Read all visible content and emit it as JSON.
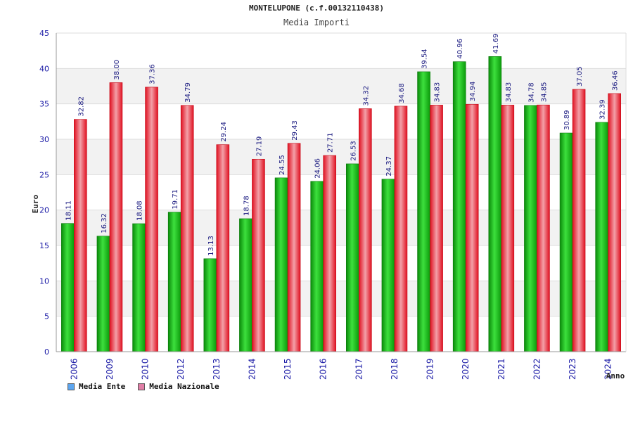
{
  "colors": {
    "ente": "#19c119",
    "nazionale": "#ee2a3a",
    "legend_ente": "#5da6f0",
    "legend_nazionale": "#e07ea6"
  },
  "chart_data": {
    "type": "bar",
    "title": "MONTELUPONE (c.f.00132110438)",
    "subtitle": "Media Importi",
    "xlabel": "Anno",
    "ylabel": "Euro",
    "ylim": [
      0,
      45
    ],
    "yticks": [
      0,
      5,
      10,
      15,
      20,
      25,
      30,
      35,
      40,
      45
    ],
    "grid": true,
    "legend_position": "bottom-left",
    "categories": [
      "2006",
      "2009",
      "2010",
      "2012",
      "2013",
      "2014",
      "2015",
      "2016",
      "2017",
      "2018",
      "2019",
      "2020",
      "2021",
      "2022",
      "2023",
      "2024"
    ],
    "series": [
      {
        "name": "Media Ente",
        "values": [
          18.11,
          16.32,
          18.08,
          19.71,
          13.13,
          18.78,
          24.55,
          24.06,
          26.53,
          24.37,
          39.54,
          40.96,
          41.69,
          34.78,
          30.89,
          32.39
        ],
        "labels": [
          "18.11",
          "16.32",
          "18.08",
          "19.71",
          "13.13",
          "18.78",
          "24.55",
          "24.06",
          "26.53",
          "24.37",
          "39.54",
          "40.96",
          "41.69",
          "34.78",
          "30.89",
          "32.39"
        ]
      },
      {
        "name": "Media Nazionale",
        "values": [
          32.82,
          38.0,
          37.36,
          34.79,
          29.24,
          27.19,
          29.43,
          27.71,
          34.32,
          34.68,
          34.83,
          34.94,
          34.83,
          34.85,
          37.05,
          36.46
        ],
        "labels": [
          "32.82",
          "38.00",
          "37.36",
          "34.79",
          "29.24",
          "27.19",
          "29.43",
          "27.71",
          "34.32",
          "34.68",
          "34.83",
          "34.94",
          "34.83",
          "34.85",
          "37.05",
          "36.46"
        ]
      }
    ]
  }
}
